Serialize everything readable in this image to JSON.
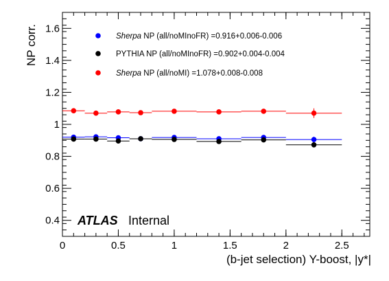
{
  "chart_data": {
    "type": "scatter",
    "title": "",
    "xlabel": "(b-jet selection) Y-boost, |y*|",
    "ylabel": "NP corr.",
    "xlim": [
      0,
      2.75
    ],
    "ylim": [
      0.3,
      1.7
    ],
    "x_ticks": [
      "0",
      "0.5",
      "1",
      "1.5",
      "2",
      "2.5"
    ],
    "y_ticks": [
      "0.4",
      "0.6",
      "0.8",
      "1",
      "1.2",
      "1.4",
      "1.6"
    ],
    "grid": false,
    "legend_position": "top-left",
    "annotation": {
      "experiment": "ATLAS",
      "status": "Internal"
    },
    "series": [
      {
        "name_italic_part": "Sherpa",
        "name": "Sherpa NP (all/noMInoFR) =0.916+0.006-0.006",
        "color": "#0000ff",
        "x": [
          0.1,
          0.3,
          0.5,
          0.7,
          1.0,
          1.4,
          1.8,
          2.25
        ],
        "xerr": [
          0.1,
          0.1,
          0.1,
          0.1,
          0.2,
          0.2,
          0.2,
          0.25
        ],
        "y": [
          0.92,
          0.922,
          0.916,
          0.91,
          0.918,
          0.91,
          0.918,
          0.905
        ],
        "yerr": [
          0.005,
          0.005,
          0.005,
          0.005,
          0.005,
          0.006,
          0.007,
          0.018
        ]
      },
      {
        "name_italic_part": "",
        "name": "PYTHIA NP (all/noMInoFR) =0.902+0.004-0.004",
        "color": "#000000",
        "x": [
          0.1,
          0.3,
          0.5,
          0.7,
          1.0,
          1.4,
          1.8,
          2.25
        ],
        "xerr": [
          0.1,
          0.1,
          0.1,
          0.1,
          0.2,
          0.2,
          0.2,
          0.25
        ],
        "y": [
          0.908,
          0.908,
          0.896,
          0.91,
          0.906,
          0.893,
          0.903,
          0.872
        ],
        "yerr": [
          0.005,
          0.005,
          0.005,
          0.005,
          0.005,
          0.006,
          0.007,
          0.008
        ]
      },
      {
        "name_italic_part": "Sherpa",
        "name": "Sherpa NP (all/noMI)     =1.078+0.008-0.008",
        "color": "#ff0000",
        "x": [
          0.1,
          0.3,
          0.5,
          0.7,
          1.0,
          1.4,
          1.8,
          2.25
        ],
        "xerr": [
          0.1,
          0.1,
          0.1,
          0.1,
          0.2,
          0.2,
          0.2,
          0.25
        ],
        "y": [
          1.085,
          1.07,
          1.078,
          1.073,
          1.082,
          1.078,
          1.082,
          1.07
        ],
        "yerr": [
          0.006,
          0.006,
          0.006,
          0.006,
          0.006,
          0.007,
          0.008,
          0.03
        ]
      }
    ]
  }
}
